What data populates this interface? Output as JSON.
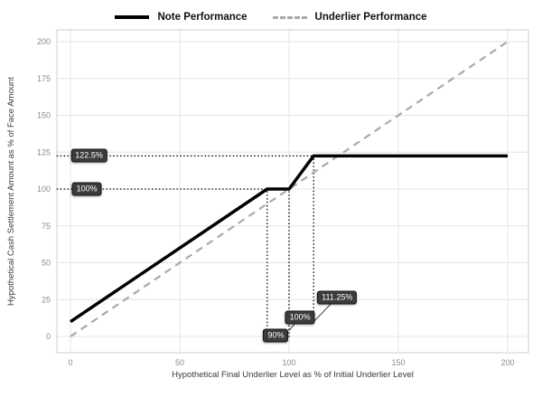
{
  "chart_data": {
    "type": "line",
    "title": "",
    "xlabel": "Hypothetical Final Underlier Level as % of Initial Underlier Level",
    "ylabel": "Hypothetical Cash Settlement Amount as % of Face Amount",
    "x_ticks": [
      0,
      50,
      100,
      150,
      200
    ],
    "y_ticks": [
      0,
      25,
      50,
      75,
      100,
      125,
      150,
      175,
      200
    ],
    "xlim": [
      0,
      200
    ],
    "ylim": [
      0,
      200
    ],
    "grid": true,
    "legend_position": "top",
    "series": [
      {
        "name": "Note Performance",
        "color": "#000000",
        "width": 3.5,
        "dash": null,
        "points": [
          [
            0,
            10
          ],
          [
            90,
            100
          ],
          [
            100,
            100
          ],
          [
            111.25,
            122.5
          ],
          [
            200,
            122.5
          ]
        ]
      },
      {
        "name": "Underlier Performance",
        "color": "#a9a9a9",
        "width": 2.2,
        "dash": "8 6",
        "points": [
          [
            0,
            0
          ],
          [
            200,
            200
          ]
        ]
      }
    ],
    "guides": [
      {
        "orient": "h",
        "value": 122.5,
        "from": -6,
        "to": 111.25
      },
      {
        "orient": "h",
        "value": 100,
        "from": -6,
        "to": 90
      },
      {
        "orient": "v",
        "value": 90,
        "from": 0,
        "to": 100
      },
      {
        "orient": "v",
        "value": 100,
        "from": 0,
        "to": 100
      },
      {
        "orient": "v",
        "value": 111.25,
        "from": 10,
        "to": 122.5
      }
    ],
    "annotations": [
      {
        "text": "122.5%",
        "x": 8.5,
        "y": 122.5
      },
      {
        "text": "100%",
        "x": 7.5,
        "y": 100
      },
      {
        "text": "90%",
        "x": 94,
        "y": 0.5,
        "leader": [
          90,
          1
        ]
      },
      {
        "text": "100%",
        "x": 105,
        "y": 13,
        "leader": [
          100,
          4
        ]
      },
      {
        "text": "111.25%",
        "x": 122,
        "y": 26.5,
        "leader": [
          111.25,
          10
        ]
      }
    ]
  },
  "colors": {
    "grid": "#e4e4e4",
    "plot_border": "#cfcfcf",
    "tick_label": "#8a8a8a",
    "axis_label": "#3a3a3a",
    "guide": "#101010",
    "leader": "#333333",
    "badge_bg": "#3b3b3b",
    "badge_text": "#ffffff"
  }
}
